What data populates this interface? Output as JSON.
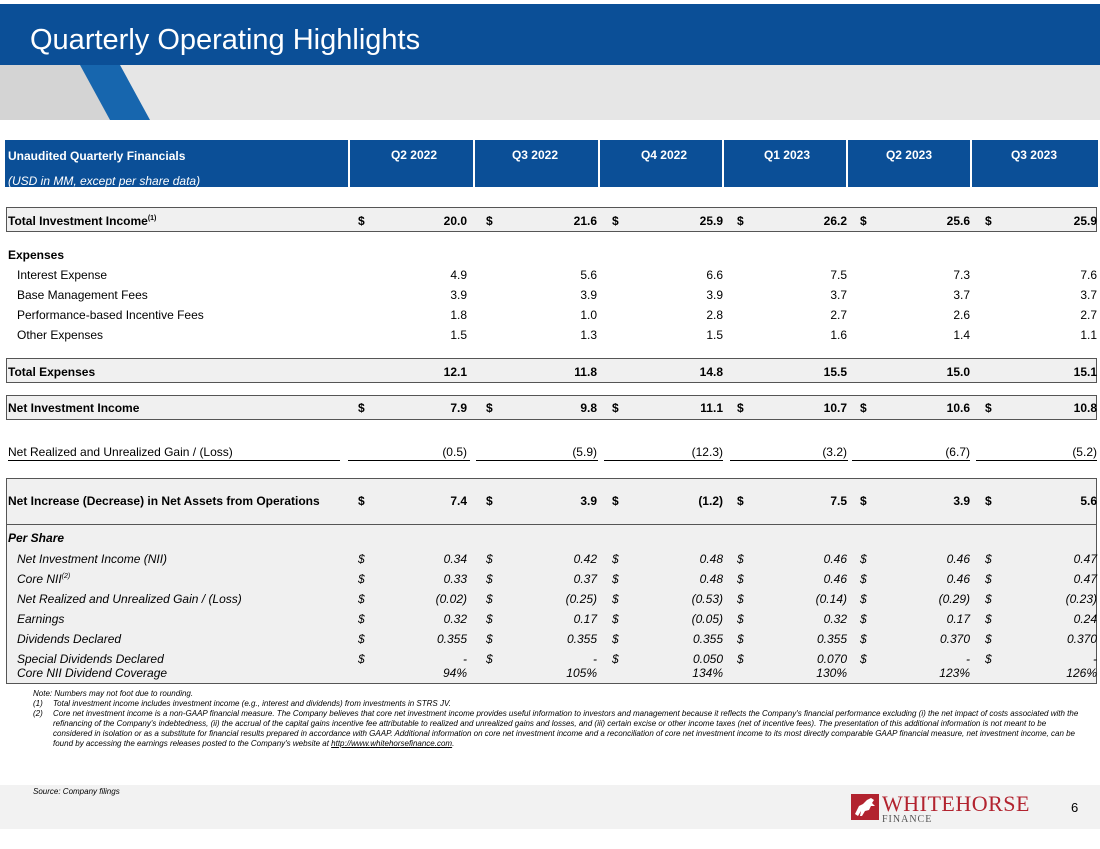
{
  "header": {
    "title": "Quarterly Operating Highlights"
  },
  "table": {
    "title": "Unaudited Quarterly Financials",
    "subtitle": "(USD in MM, except per share data)",
    "quarters": [
      "Q2 2022",
      "Q3 2022",
      "Q4 2022",
      "Q1 2023",
      "Q2 2023",
      "Q3 2023"
    ],
    "currency_symbol": "$",
    "total_investment_income": {
      "label": "Total Investment Income",
      "sup": "(1)",
      "values": [
        "20.0",
        "21.6",
        "25.9",
        "26.2",
        "25.6",
        "25.9"
      ]
    },
    "expenses_heading": "Expenses",
    "expense_rows": [
      {
        "label": "Interest Expense",
        "values": [
          "4.9",
          "5.6",
          "6.6",
          "7.5",
          "7.3",
          "7.6"
        ]
      },
      {
        "label": "Base Management Fees",
        "values": [
          "3.9",
          "3.9",
          "3.9",
          "3.7",
          "3.7",
          "3.7"
        ]
      },
      {
        "label": "Performance-based Incentive Fees",
        "values": [
          "1.8",
          "1.0",
          "2.8",
          "2.7",
          "2.6",
          "2.7"
        ]
      },
      {
        "label": "Other Expenses",
        "values": [
          "1.5",
          "1.3",
          "1.5",
          "1.6",
          "1.4",
          "1.1"
        ]
      }
    ],
    "total_expenses": {
      "label": "Total Expenses",
      "values": [
        "12.1",
        "11.8",
        "14.8",
        "15.5",
        "15.0",
        "15.1"
      ]
    },
    "net_investment_income": {
      "label": "Net Investment Income",
      "values": [
        "7.9",
        "9.8",
        "11.1",
        "10.7",
        "10.6",
        "10.8"
      ]
    },
    "net_realized_gain": {
      "label": "Net Realized and Unrealized Gain / (Loss)",
      "values": [
        "(0.5)",
        "(5.9)",
        "(12.3)",
        "(3.2)",
        "(6.7)",
        "(5.2)"
      ]
    },
    "net_increase": {
      "label": "Net Increase (Decrease) in Net Assets from Operations",
      "values": [
        "7.4",
        "3.9",
        "(1.2)",
        "7.5",
        "3.9",
        "5.6"
      ]
    },
    "per_share": {
      "heading": "Per Share",
      "rows": [
        {
          "label": "Net Investment Income (NII)",
          "sup": "",
          "dollar": true,
          "values": [
            "0.34",
            "0.42",
            "0.48",
            "0.46",
            "0.46",
            "0.47"
          ]
        },
        {
          "label": "Core NII",
          "sup": "(2)",
          "dollar": true,
          "values": [
            "0.33",
            "0.37",
            "0.48",
            "0.46",
            "0.46",
            "0.47"
          ]
        },
        {
          "label": "Net Realized and Unrealized Gain / (Loss)",
          "sup": "",
          "dollar": true,
          "values": [
            "(0.02)",
            "(0.25)",
            "(0.53)",
            "(0.14)",
            "(0.29)",
            "(0.23)"
          ]
        },
        {
          "label": "Earnings",
          "sup": "",
          "dollar": true,
          "values": [
            "0.32",
            "0.17",
            "(0.05)",
            "0.32",
            "0.17",
            "0.24"
          ]
        },
        {
          "label": "Dividends Declared",
          "sup": "",
          "dollar": true,
          "values": [
            "0.355",
            "0.355",
            "0.355",
            "0.355",
            "0.370",
            "0.370"
          ]
        },
        {
          "label": "Special Dividends Declared",
          "sup": "",
          "dollar": true,
          "values": [
            "-",
            "-",
            "0.050",
            "0.070",
            "-",
            "-"
          ]
        },
        {
          "label": "Core NII Dividend Coverage",
          "sup": "",
          "dollar": false,
          "values": [
            "94%",
            "105%",
            "134%",
            "130%",
            "123%",
            "126%"
          ]
        }
      ]
    }
  },
  "notes": {
    "intro": "Note: Numbers may not foot due to rounding.",
    "items": [
      {
        "label": "(1)",
        "text": "Total investment income includes investment income (e.g., interest and dividends) from investments in STRS JV."
      },
      {
        "label": "(2)",
        "text": "Core net investment income is a non-GAAP financial measure. The Company believes that core net investment income provides useful information to investors and management because it reflects the Company's financial performance excluding (i) the net impact of costs associated with the refinancing of the Company's indebtedness, (ii) the accrual of the capital gains incentive fee attributable to realized and unrealized gains and losses, and (iii) certain excise or other income taxes (net of incentive fees). The presentation of this additional information is not meant to be considered in isolation or as a substitute for financial results prepared in accordance with GAAP. Additional information on core net investment income and a reconciliation of core net investment income to its most directly comparable GAAP financial measure, net investment income, can be found by accessing the earnings releases posted to the Company's website at ",
        "link": "http://www.whitehorsefinance.com",
        "end": "."
      }
    ]
  },
  "source": "Source: Company filings",
  "logo": {
    "word": "WHITEHORSE",
    "sub": "FINANCE"
  },
  "page_number": "6",
  "colors": {
    "brand_blue": "#0b4f97",
    "logo_red": "#b2232f"
  }
}
